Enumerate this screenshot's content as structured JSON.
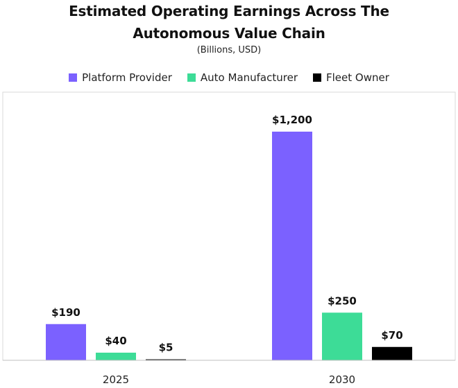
{
  "chart_data": {
    "type": "bar",
    "title_line1": "Estimated Operating Earnings Across The",
    "title_line2": "Autonomous Value Chain",
    "subtitle": "(Billions, USD)",
    "categories": [
      "2025",
      "2030"
    ],
    "series": [
      {
        "name": "Platform Provider",
        "color": "#7b61ff",
        "values": [
          190,
          1200
        ],
        "labels": [
          "$190",
          "$1,200"
        ]
      },
      {
        "name": "Auto Manufacturer",
        "color": "#3ddc97",
        "values": [
          40,
          250
        ],
        "labels": [
          "$40",
          "$250"
        ]
      },
      {
        "name": "Fleet Owner",
        "color": "#000000",
        "values": [
          5,
          70
        ],
        "labels": [
          "$5",
          "$70"
        ]
      }
    ],
    "ylim": [
      0,
      1200
    ],
    "legend_position": "top",
    "grid": false
  }
}
